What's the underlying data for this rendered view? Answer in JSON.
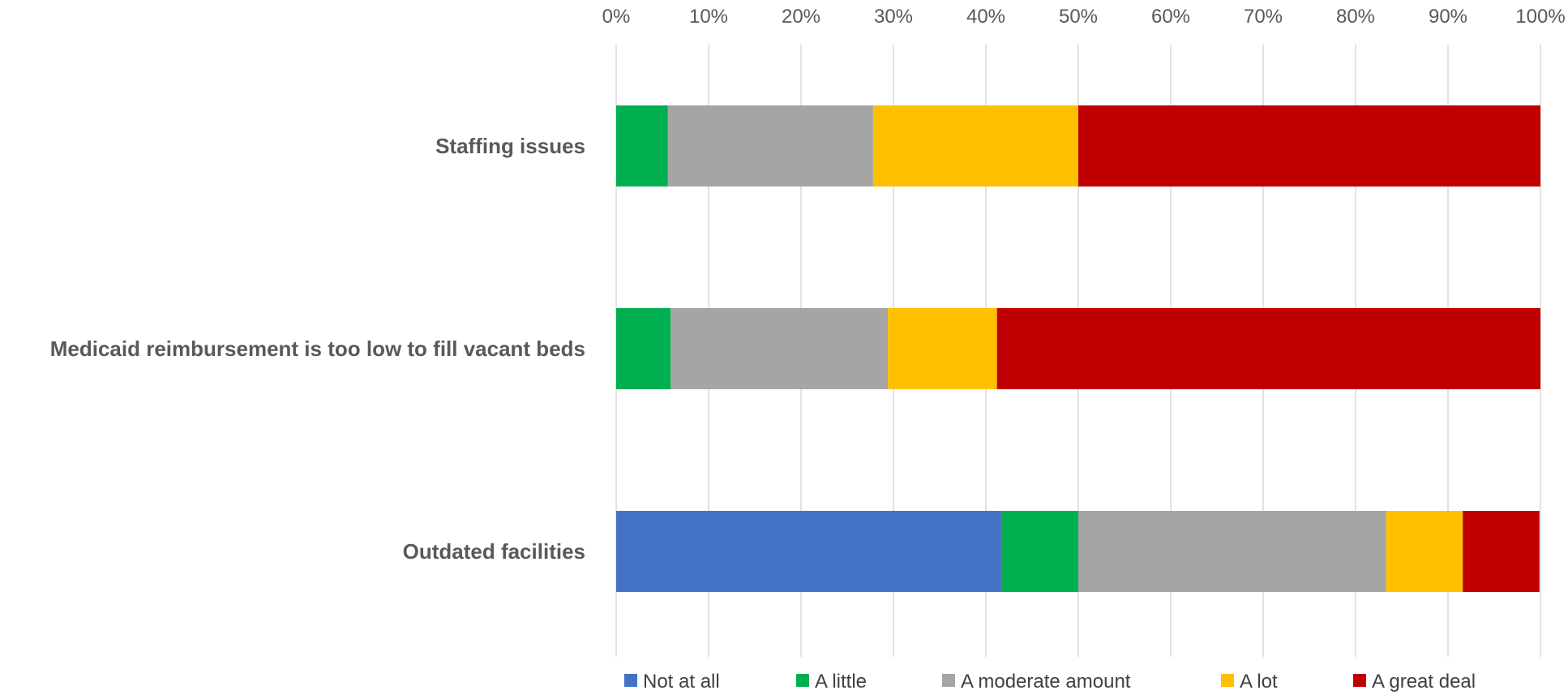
{
  "chart_data": {
    "type": "bar",
    "orientation": "horizontal",
    "stacked": true,
    "percent": true,
    "title": "",
    "xlabel": "",
    "ylabel": "",
    "xlim": [
      0,
      100
    ],
    "x_ticks": [
      "0%",
      "10%",
      "20%",
      "30%",
      "40%",
      "50%",
      "60%",
      "70%",
      "80%",
      "90%",
      "100%"
    ],
    "x_axis_position": "top",
    "grid": true,
    "legend_position": "bottom",
    "categories": [
      "Staffing issues",
      "Medicaid reimbursement is too low to fill vacant beds",
      "Outdated facilities"
    ],
    "series": [
      {
        "name": "Not at all",
        "color": "#4472C4",
        "values": [
          0,
          0,
          41.7
        ]
      },
      {
        "name": "A little",
        "color": "#00B050",
        "values": [
          5.6,
          5.9,
          8.3
        ]
      },
      {
        "name": "A moderate amount",
        "color": "#A5A5A5",
        "values": [
          22.2,
          23.5,
          33.3
        ]
      },
      {
        "name": "A lot",
        "color": "#FFC000",
        "values": [
          22.2,
          11.8,
          8.3
        ]
      },
      {
        "name": "A great deal",
        "color": "#C00000",
        "values": [
          50.0,
          58.8,
          8.3
        ]
      }
    ]
  }
}
